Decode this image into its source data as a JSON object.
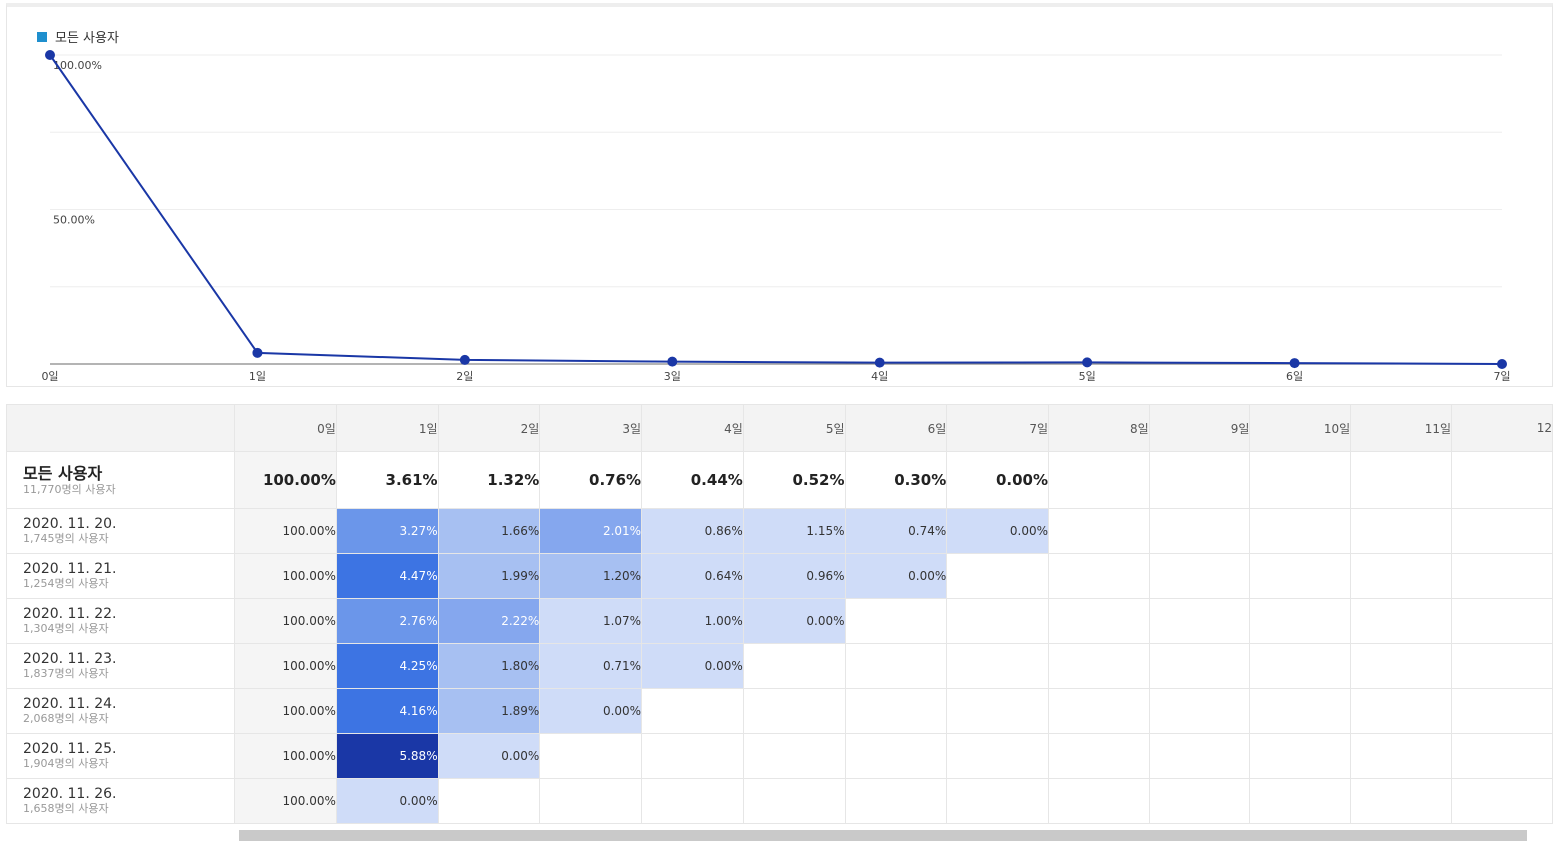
{
  "legend": {
    "label": "모든 사용자",
    "color": "#1f8fce"
  },
  "chart_data": {
    "type": "line",
    "x": [
      "0일",
      "1일",
      "2일",
      "3일",
      "4일",
      "5일",
      "6일",
      "7일"
    ],
    "series": [
      {
        "name": "모든 사용자",
        "values": [
          100.0,
          3.61,
          1.32,
          0.76,
          0.44,
          0.52,
          0.3,
          0.0
        ],
        "color": "#1a37a6"
      }
    ],
    "yticks": [
      "100.00%",
      "50.00%"
    ],
    "ylim": [
      0,
      100
    ],
    "grid": true
  },
  "table": {
    "columns": [
      "0일",
      "1일",
      "2일",
      "3일",
      "4일",
      "5일",
      "6일",
      "7일",
      "8일",
      "9일",
      "10일",
      "11일",
      "12"
    ],
    "summary": {
      "title": "모든 사용자",
      "subtitle": "11,770명의 사용자",
      "values": [
        "100.00%",
        "3.61%",
        "1.32%",
        "0.76%",
        "0.44%",
        "0.52%",
        "0.30%",
        "0.00%"
      ]
    },
    "rows": [
      {
        "date": "2020. 11. 20.",
        "users": "1,745명의 사용자",
        "values": [
          "100.00%",
          "3.27%",
          "1.66%",
          "2.01%",
          "0.86%",
          "1.15%",
          "0.74%",
          "0.00%"
        ]
      },
      {
        "date": "2020. 11. 21.",
        "users": "1,254명의 사용자",
        "values": [
          "100.00%",
          "4.47%",
          "1.99%",
          "1.20%",
          "0.64%",
          "0.96%",
          "0.00%"
        ]
      },
      {
        "date": "2020. 11. 22.",
        "users": "1,304명의 사용자",
        "values": [
          "100.00%",
          "2.76%",
          "2.22%",
          "1.07%",
          "1.00%",
          "0.00%"
        ]
      },
      {
        "date": "2020. 11. 23.",
        "users": "1,837명의 사용자",
        "values": [
          "100.00%",
          "4.25%",
          "1.80%",
          "0.71%",
          "0.00%"
        ]
      },
      {
        "date": "2020. 11. 24.",
        "users": "2,068명의 사용자",
        "values": [
          "100.00%",
          "4.16%",
          "1.89%",
          "0.00%"
        ]
      },
      {
        "date": "2020. 11. 25.",
        "users": "1,904명의 사용자",
        "values": [
          "100.00%",
          "5.88%",
          "0.00%"
        ]
      },
      {
        "date": "2020. 11. 26.",
        "users": "1,658명의 사용자",
        "values": [
          "100.00%",
          "0.00%"
        ]
      }
    ],
    "heat_colors": {
      "lightest": "#cfdcf8",
      "light": "#a7c0f2",
      "mid": "#85a7ee",
      "medium": "#6b96ea",
      "strong": "#3d74e3",
      "darkest": "#1a37a6"
    }
  }
}
